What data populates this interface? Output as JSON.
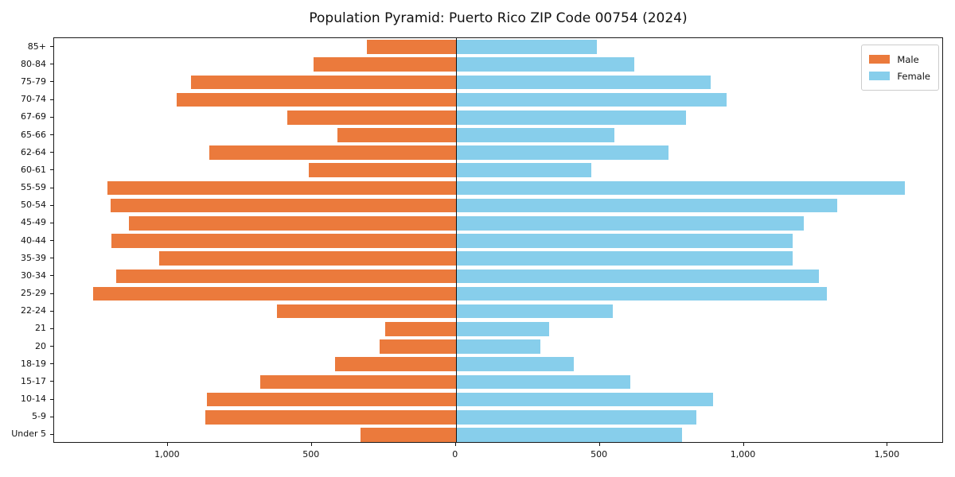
{
  "chart_data": {
    "type": "bar",
    "subtype": "population-pyramid",
    "title": "Population Pyramid: Puerto Rico ZIP Code 00754 (2024)",
    "categories": [
      "85+",
      "80-84",
      "75-79",
      "70-74",
      "67-69",
      "65-66",
      "62-64",
      "60-61",
      "55-59",
      "50-54",
      "45-49",
      "40-44",
      "35-39",
      "30-34",
      "25-29",
      "22-24",
      "21",
      "20",
      "18-19",
      "15-17",
      "10-14",
      "5-9",
      "Under 5"
    ],
    "series": [
      {
        "name": "Male",
        "side": "left",
        "color": "#EB7A3C",
        "values": [
          310,
          495,
          920,
          970,
          585,
          410,
          855,
          510,
          1210,
          1200,
          1135,
          1195,
          1030,
          1180,
          1260,
          620,
          245,
          265,
          420,
          680,
          865,
          870,
          330
        ]
      },
      {
        "name": "Female",
        "side": "right",
        "color": "#87CEEB",
        "values": [
          490,
          620,
          885,
          940,
          800,
          550,
          740,
          470,
          1560,
          1325,
          1210,
          1170,
          1170,
          1260,
          1290,
          545,
          325,
          295,
          410,
          605,
          895,
          835,
          785
        ]
      }
    ],
    "x_ticks": [
      {
        "value": -1000,
        "label": "1,000"
      },
      {
        "value": -500,
        "label": "500"
      },
      {
        "value": 0,
        "label": "0"
      },
      {
        "value": 500,
        "label": "500"
      },
      {
        "value": 1000,
        "label": "1,000"
      },
      {
        "value": 1500,
        "label": "1,500"
      }
    ],
    "xlim": [
      -1395,
      1695
    ],
    "xlabel": "",
    "ylabel": "",
    "grid": false,
    "legend_position": "upper right",
    "center_axis_value": 0
  }
}
